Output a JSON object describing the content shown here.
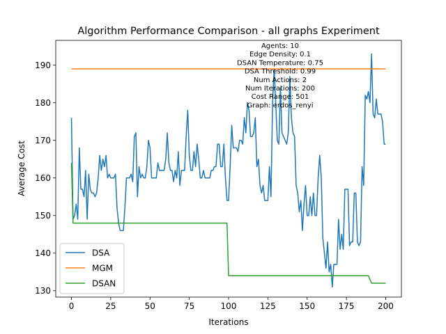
{
  "chart_data": {
    "type": "line",
    "title": "Algorithm Performance Comparison - all graphs Experiment",
    "xlabel": "Iterations",
    "ylabel": "Average Cost",
    "xlim": [
      -10,
      210
    ],
    "ylim": [
      128.3,
      196.6
    ],
    "xticks": [
      0,
      25,
      50,
      75,
      100,
      125,
      150,
      175,
      200
    ],
    "yticks": [
      130,
      140,
      150,
      160,
      170,
      180,
      190
    ],
    "grid": false,
    "legend_position": "lower-left",
    "annotation_lines": [
      "Agents: 10",
      "Edge Density: 0.1",
      "DSAN Temperature: 0.75",
      "DSA Threshold: 0.99",
      "Num Actions: 2",
      "Num Iterations: 200",
      "Cost Range: 501",
      "Graph: erdos_renyi"
    ],
    "series": [
      {
        "name": "DSA",
        "color": "#1f77b4",
        "points": [
          [
            0,
            176
          ],
          [
            1,
            149
          ],
          [
            2,
            150
          ],
          [
            3,
            153
          ],
          [
            4,
            149
          ],
          [
            5,
            168
          ],
          [
            6,
            157
          ],
          [
            7,
            157
          ],
          [
            8,
            155
          ],
          [
            9,
            162
          ],
          [
            10,
            149
          ],
          [
            11,
            161
          ],
          [
            12,
            157
          ],
          [
            13,
            156
          ],
          [
            14,
            156
          ],
          [
            15,
            155
          ],
          [
            16,
            156
          ],
          [
            17,
            160
          ],
          [
            18,
            166
          ],
          [
            19,
            162
          ],
          [
            20,
            165
          ],
          [
            21,
            163
          ],
          [
            22,
            166
          ],
          [
            23,
            160
          ],
          [
            24,
            161
          ],
          [
            25,
            160
          ],
          [
            26,
            160
          ],
          [
            27,
            160
          ],
          [
            28,
            161
          ],
          [
            29,
            152
          ],
          [
            30,
            148
          ],
          [
            31,
            146
          ],
          [
            32,
            146
          ],
          [
            33,
            146
          ],
          [
            34,
            152
          ],
          [
            35,
            160
          ],
          [
            36,
            160
          ],
          [
            37,
            160
          ],
          [
            38,
            161
          ],
          [
            39,
            159
          ],
          [
            40,
            171
          ],
          [
            41,
            172
          ],
          [
            42,
            155
          ],
          [
            43,
            163
          ],
          [
            44,
            160
          ],
          [
            45,
            161
          ],
          [
            46,
            160
          ],
          [
            47,
            160
          ],
          [
            48,
            163
          ],
          [
            49,
            170
          ],
          [
            50,
            168
          ],
          [
            51,
            160
          ],
          [
            52,
            160
          ],
          [
            53,
            160
          ],
          [
            54,
            160
          ],
          [
            55,
            164
          ],
          [
            56,
            162
          ],
          [
            57,
            162
          ],
          [
            58,
            162
          ],
          [
            59,
            162
          ],
          [
            60,
            165
          ],
          [
            61,
            172
          ],
          [
            62,
            164
          ],
          [
            63,
            162
          ],
          [
            64,
            162
          ],
          [
            65,
            159
          ],
          [
            66,
            162
          ],
          [
            67,
            160
          ],
          [
            68,
            167
          ],
          [
            69,
            158
          ],
          [
            70,
            162
          ],
          [
            71,
            162
          ],
          [
            72,
            162
          ],
          [
            73,
            171
          ],
          [
            74,
            178
          ],
          [
            75,
            166
          ],
          [
            76,
            162
          ],
          [
            77,
            162
          ],
          [
            78,
            167
          ],
          [
            79,
            163
          ],
          [
            80,
            169
          ],
          [
            81,
            165
          ],
          [
            82,
            160
          ],
          [
            83,
            160
          ],
          [
            84,
            162
          ],
          [
            85,
            160
          ],
          [
            86,
            160
          ],
          [
            87,
            160
          ],
          [
            88,
            160
          ],
          [
            89,
            162
          ],
          [
            90,
            162
          ],
          [
            91,
            163
          ],
          [
            92,
            163
          ],
          [
            93,
            169
          ],
          [
            94,
            169
          ],
          [
            95,
            163
          ],
          [
            96,
            163
          ],
          [
            97,
            169
          ],
          [
            98,
            160
          ],
          [
            99,
            154
          ],
          [
            100,
            154
          ],
          [
            101,
            163
          ],
          [
            102,
            174
          ],
          [
            103,
            168
          ],
          [
            104,
            168
          ],
          [
            105,
            168
          ],
          [
            106,
            167
          ],
          [
            107,
            170
          ],
          [
            108,
            170
          ],
          [
            109,
            169
          ],
          [
            110,
            176
          ],
          [
            111,
            172
          ],
          [
            112,
            180
          ],
          [
            113,
            178
          ],
          [
            114,
            171
          ],
          [
            115,
            171
          ],
          [
            116,
            172
          ],
          [
            117,
            176
          ],
          [
            118,
            163
          ],
          [
            119,
            165
          ],
          [
            120,
            158
          ],
          [
            121,
            156
          ],
          [
            122,
            158
          ],
          [
            123,
            154
          ],
          [
            124,
            154
          ],
          [
            125,
            154
          ],
          [
            126,
            163
          ],
          [
            127,
            155
          ],
          [
            128,
            180
          ],
          [
            129,
            189
          ],
          [
            130,
            180
          ],
          [
            131,
            170
          ],
          [
            132,
            169
          ],
          [
            133,
            184
          ],
          [
            134,
            172
          ],
          [
            135,
            171
          ],
          [
            136,
            170
          ],
          [
            137,
            169
          ],
          [
            138,
            172
          ],
          [
            139,
            187
          ],
          [
            140,
            176
          ],
          [
            141,
            172
          ],
          [
            142,
            171
          ],
          [
            143,
            158
          ],
          [
            144,
            156
          ],
          [
            145,
            151
          ],
          [
            146,
            154
          ],
          [
            147,
            146
          ],
          [
            148,
            153
          ],
          [
            149,
            158
          ],
          [
            150,
            150
          ],
          [
            151,
            150
          ],
          [
            152,
            155
          ],
          [
            153,
            150
          ],
          [
            154,
            156
          ],
          [
            155,
            150
          ],
          [
            156,
            150
          ],
          [
            157,
            160
          ],
          [
            158,
            166
          ],
          [
            159,
            160
          ],
          [
            160,
            144
          ],
          [
            161,
            140
          ],
          [
            162,
            136
          ],
          [
            163,
            143
          ],
          [
            164,
            135
          ],
          [
            165,
            137
          ],
          [
            166,
            131
          ],
          [
            167,
            137
          ],
          [
            168,
            137
          ],
          [
            169,
            137
          ],
          [
            170,
            149
          ],
          [
            171,
            141
          ],
          [
            172,
            145
          ],
          [
            173,
            141
          ],
          [
            174,
            157
          ],
          [
            175,
            157
          ],
          [
            176,
            157
          ],
          [
            177,
            142
          ],
          [
            178,
            143
          ],
          [
            179,
            143
          ],
          [
            180,
            156
          ],
          [
            181,
            156
          ],
          [
            182,
            143
          ],
          [
            183,
            142
          ],
          [
            184,
            143
          ],
          [
            185,
            163
          ],
          [
            186,
            158
          ],
          [
            187,
            182
          ],
          [
            188,
            181
          ],
          [
            189,
            183
          ],
          [
            190,
            180
          ],
          [
            191,
            193
          ],
          [
            192,
            177
          ],
          [
            193,
            176
          ],
          [
            194,
            181
          ],
          [
            195,
            177
          ],
          [
            196,
            177
          ],
          [
            197,
            177
          ],
          [
            198,
            175
          ],
          [
            199,
            169
          ],
          [
            200,
            169
          ]
        ]
      },
      {
        "name": "MGM",
        "color": "#ff7f0e",
        "points": [
          [
            0,
            189
          ],
          [
            200,
            189
          ]
        ]
      },
      {
        "name": "DSAN",
        "color": "#2ca02c",
        "points": [
          [
            0,
            164
          ],
          [
            1,
            148
          ],
          [
            99,
            148
          ],
          [
            100,
            134
          ],
          [
            189,
            134
          ],
          [
            191,
            132
          ],
          [
            200,
            132
          ]
        ]
      }
    ]
  }
}
